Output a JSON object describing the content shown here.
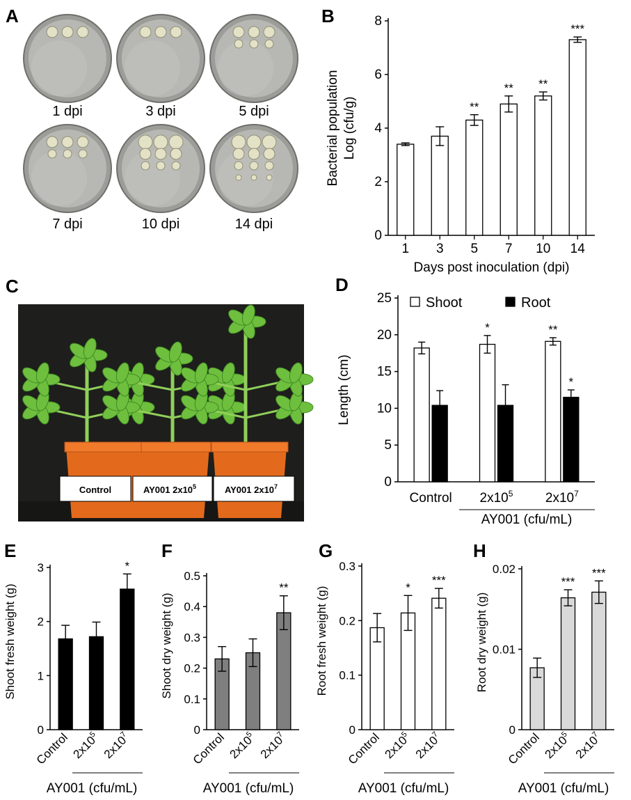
{
  "panels": {
    "A": {
      "label": "A",
      "plates": [
        {
          "label": "1 dpi"
        },
        {
          "label": "3 dpi"
        },
        {
          "label": "5 dpi"
        },
        {
          "label": "7 dpi"
        },
        {
          "label": "10 dpi"
        },
        {
          "label": "14 dpi"
        }
      ]
    },
    "C": {
      "label": "C",
      "pot_labels": [
        "Control",
        "AY001  2x10",
        "AY001  2x10"
      ],
      "pot_label_sup": [
        "",
        "5",
        "7"
      ]
    }
  },
  "colors": {
    "bar_white": "#ffffff",
    "bar_black": "#000000",
    "bar_dark_gray": "#7f7f7f",
    "bar_light_gray": "#d9d9d9",
    "plate_bg": "#b7b8b3",
    "photo_bg": "#1e1e1c",
    "pot": "#e36a1c",
    "leaf": "#6fbf3f"
  },
  "chart_data": [
    {
      "id": "B",
      "panel_label": "B",
      "type": "bar",
      "categories": [
        "1",
        "3",
        "5",
        "7",
        "10",
        "14"
      ],
      "values": [
        3.4,
        3.7,
        4.3,
        4.9,
        5.2,
        7.3
      ],
      "errors": [
        0.05,
        0.35,
        0.2,
        0.3,
        0.15,
        0.1
      ],
      "significance": [
        "",
        "",
        "**",
        "**",
        "**",
        "***"
      ],
      "ylabel_lines": [
        "Bacterial population",
        "Log (cfu/g)"
      ],
      "xlabel": "Days post inoculation (dpi)",
      "ylim": [
        0,
        8
      ],
      "yticks": [
        0,
        2,
        4,
        6,
        8
      ],
      "fill": "#ffffff"
    },
    {
      "id": "D",
      "panel_label": "D",
      "type": "bar",
      "categories": [
        "Control",
        "2x10",
        "2x10"
      ],
      "category_sup": [
        "",
        "5",
        "7"
      ],
      "series": [
        {
          "name": "Shoot",
          "values": [
            18.2,
            18.7,
            19.1
          ],
          "errors": [
            0.8,
            1.2,
            0.5
          ],
          "significance": [
            "",
            "*",
            "**"
          ],
          "fill": "#ffffff"
        },
        {
          "name": "Root",
          "values": [
            10.4,
            10.4,
            11.5
          ],
          "errors": [
            2.0,
            2.8,
            1.0
          ],
          "significance": [
            "",
            "",
            "*"
          ],
          "fill": "#000000"
        }
      ],
      "ylabel": "Length (cm)",
      "group_label": "AY001 (cfu/mL)",
      "ylim": [
        0,
        25
      ],
      "yticks": [
        0,
        5,
        10,
        15,
        20,
        25
      ]
    },
    {
      "id": "E",
      "panel_label": "E",
      "type": "bar",
      "categories": [
        "Control",
        "2x10",
        "2x10"
      ],
      "category_sup": [
        "",
        "5",
        "7"
      ],
      "values": [
        1.68,
        1.72,
        2.6
      ],
      "errors": [
        0.25,
        0.27,
        0.28
      ],
      "significance": [
        "",
        "",
        "*"
      ],
      "ylabel": "Shoot fresh weight (g)",
      "group_label": "AY001 (cfu/mL)",
      "ylim": [
        0,
        3
      ],
      "yticks": [
        0,
        1,
        2,
        3
      ],
      "fill": "#000000"
    },
    {
      "id": "F",
      "panel_label": "F",
      "type": "bar",
      "categories": [
        "Control",
        "2x10",
        "2x10"
      ],
      "category_sup": [
        "",
        "5",
        "7"
      ],
      "values": [
        0.23,
        0.25,
        0.38
      ],
      "errors": [
        0.04,
        0.045,
        0.055
      ],
      "significance": [
        "",
        "",
        "**"
      ],
      "ylabel": "Shoot dry weight (g)",
      "group_label": "AY001 (cfu/mL)",
      "ylim": [
        0,
        0.5
      ],
      "yticks": [
        0,
        0.1,
        0.2,
        0.3,
        0.4,
        0.5
      ],
      "ytick_labels": [
        "0",
        "0.1",
        "0.2",
        "0.3",
        "0.4",
        "0.5"
      ],
      "fill": "#7f7f7f"
    },
    {
      "id": "G",
      "panel_label": "G",
      "type": "bar",
      "categories": [
        "Control",
        "2x10",
        "2x10"
      ],
      "category_sup": [
        "",
        "5",
        "7"
      ],
      "values": [
        0.187,
        0.214,
        0.241
      ],
      "errors": [
        0.026,
        0.032,
        0.018
      ],
      "significance": [
        "",
        "*",
        "***"
      ],
      "ylabel": "Root fresh weight (g)",
      "group_label": "AY001 (cfu/mL)",
      "ylim": [
        0,
        0.3
      ],
      "yticks": [
        0,
        0.1,
        0.2,
        0.3
      ],
      "ytick_labels": [
        "0",
        "0.1",
        "0.2",
        "0.3"
      ],
      "fill": "#ffffff"
    },
    {
      "id": "H",
      "panel_label": "H",
      "type": "bar",
      "categories": [
        "Control",
        "2x10",
        "2x10"
      ],
      "category_sup": [
        "",
        "5",
        "7"
      ],
      "values": [
        0.0077,
        0.0164,
        0.0171
      ],
      "errors": [
        0.0012,
        0.001,
        0.0014
      ],
      "significance": [
        "",
        "***",
        "***"
      ],
      "ylabel": "Root dry weight (g)",
      "group_label": "AY001 (cfu/mL)",
      "ylim": [
        0,
        0.02
      ],
      "yticks": [
        0,
        0.01,
        0.02
      ],
      "ytick_labels": [
        "0",
        "0.01",
        "0.02"
      ],
      "fill": "#d9d9d9"
    }
  ]
}
